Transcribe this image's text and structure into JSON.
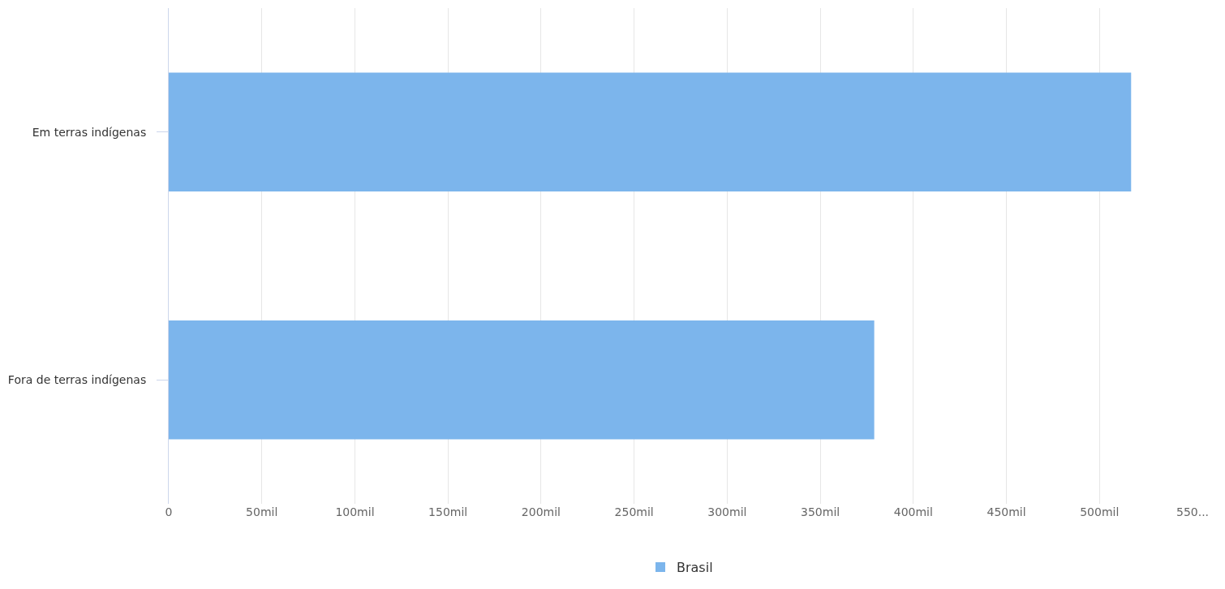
{
  "chart_data": {
    "type": "bar",
    "orientation": "horizontal",
    "categories": [
      "Em terras indígenas",
      "Fora de terras indígenas"
    ],
    "series": [
      {
        "name": "Brasil",
        "color": "#7cb5ec",
        "values": [
          517,
          379
        ]
      }
    ],
    "xlim": [
      0,
      550
    ],
    "xticks": [
      0,
      {
        "value": 50,
        "label": "50mil"
      },
      {
        "value": 100,
        "label": "100mil"
      },
      {
        "value": 150,
        "label": "150mil"
      },
      {
        "value": 200,
        "label": "200mil"
      },
      {
        "value": 250,
        "label": "250mil"
      },
      {
        "value": 300,
        "label": "300mil"
      },
      {
        "value": 350,
        "label": "350mil"
      },
      {
        "value": 400,
        "label": "400mil"
      },
      {
        "value": 450,
        "label": "450mil"
      },
      {
        "value": 500,
        "label": "500mil"
      },
      {
        "value": 550,
        "label": "550..."
      }
    ],
    "grid": "x",
    "legend": "bottom"
  }
}
